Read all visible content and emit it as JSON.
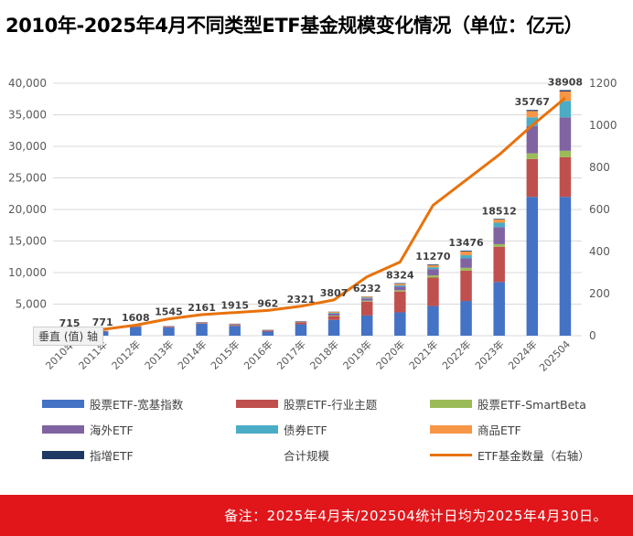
{
  "title": "2010年-2025年4月不同类型ETF基金规模变化情况（单位：亿元）",
  "footer_note": "备注：2025年4月末/202504统计日均为2025年4月30日。",
  "axis_tooltip": "垂直 (值) 轴",
  "colors": {
    "broad": "#4472c4",
    "industry": "#c0504d",
    "smartbeta": "#9bbb59",
    "overseas": "#8064a2",
    "bond": "#4bacc6",
    "commodity": "#f79646",
    "enhanced": "#1f3864",
    "count_line": "#e8720c",
    "footer": "#e0161b"
  },
  "chart_data": {
    "type": "bar",
    "stacked": true,
    "categories": [
      "2010年",
      "2011年",
      "2012年",
      "2013年",
      "2014年",
      "2015年",
      "2016年",
      "2017年",
      "2018年",
      "2019年",
      "2020年",
      "2021年",
      "2022年",
      "2023年",
      "2024年",
      "202504"
    ],
    "totals": [
      715,
      771,
      1608,
      1545,
      2161,
      1915,
      962,
      2321,
      3807,
      6232,
      8324,
      11270,
      13476,
      18512,
      35767,
      38908
    ],
    "series": [
      {
        "name": "股票ETF-宽基指数",
        "key": "broad",
        "values": [
          600,
          650,
          1400,
          1300,
          1900,
          1550,
          650,
          1800,
          2500,
          3200,
          3700,
          4700,
          5500,
          8500,
          22000,
          22000
        ]
      },
      {
        "name": "股票ETF-行业主题",
        "key": "industry",
        "values": [
          70,
          70,
          100,
          100,
          100,
          150,
          150,
          300,
          600,
          2200,
          3300,
          4500,
          4800,
          5600,
          6000,
          6300
        ]
      },
      {
        "name": "股票ETF-SmartBeta",
        "key": "smartbeta",
        "values": [
          10,
          10,
          20,
          20,
          20,
          30,
          30,
          50,
          100,
          150,
          200,
          350,
          450,
          400,
          900,
          1000
        ]
      },
      {
        "name": "海外ETF",
        "key": "overseas",
        "values": [
          20,
          25,
          50,
          80,
          90,
          120,
          70,
          110,
          300,
          350,
          600,
          1000,
          1500,
          2700,
          4300,
          5300
        ]
      },
      {
        "name": "债券ETF",
        "key": "bond",
        "values": [
          5,
          6,
          20,
          20,
          20,
          30,
          30,
          30,
          120,
          150,
          200,
          300,
          500,
          700,
          1400,
          2600
        ]
      },
      {
        "name": "商品ETF",
        "key": "commodity",
        "values": [
          5,
          5,
          10,
          15,
          20,
          25,
          22,
          21,
          157,
          152,
          224,
          300,
          600,
          512,
          1000,
          1500
        ]
      },
      {
        "name": "指增ETF",
        "key": "enhanced",
        "values": [
          5,
          5,
          8,
          10,
          11,
          10,
          10,
          10,
          30,
          30,
          100,
          120,
          126,
          100,
          167,
          208
        ]
      }
    ],
    "total_series_name": "合计规模",
    "line_series": {
      "name": "ETF基金数量（右轴）",
      "values": [
        20,
        30,
        50,
        80,
        100,
        110,
        120,
        140,
        170,
        280,
        350,
        620,
        740,
        860,
        1000,
        1130
      ]
    },
    "y_left": {
      "min": 0,
      "max": 40000,
      "ticks": [
        "",
        "5,000",
        "10,000",
        "15,000",
        "20,000",
        "25,000",
        "30,000",
        "35,000",
        "40,000"
      ]
    },
    "y_right": {
      "min": 0,
      "max": 1200,
      "ticks": [
        "0",
        "200",
        "400",
        "600",
        "800",
        "1000",
        "1200"
      ]
    },
    "grid": true,
    "legend_position": "bottom"
  }
}
